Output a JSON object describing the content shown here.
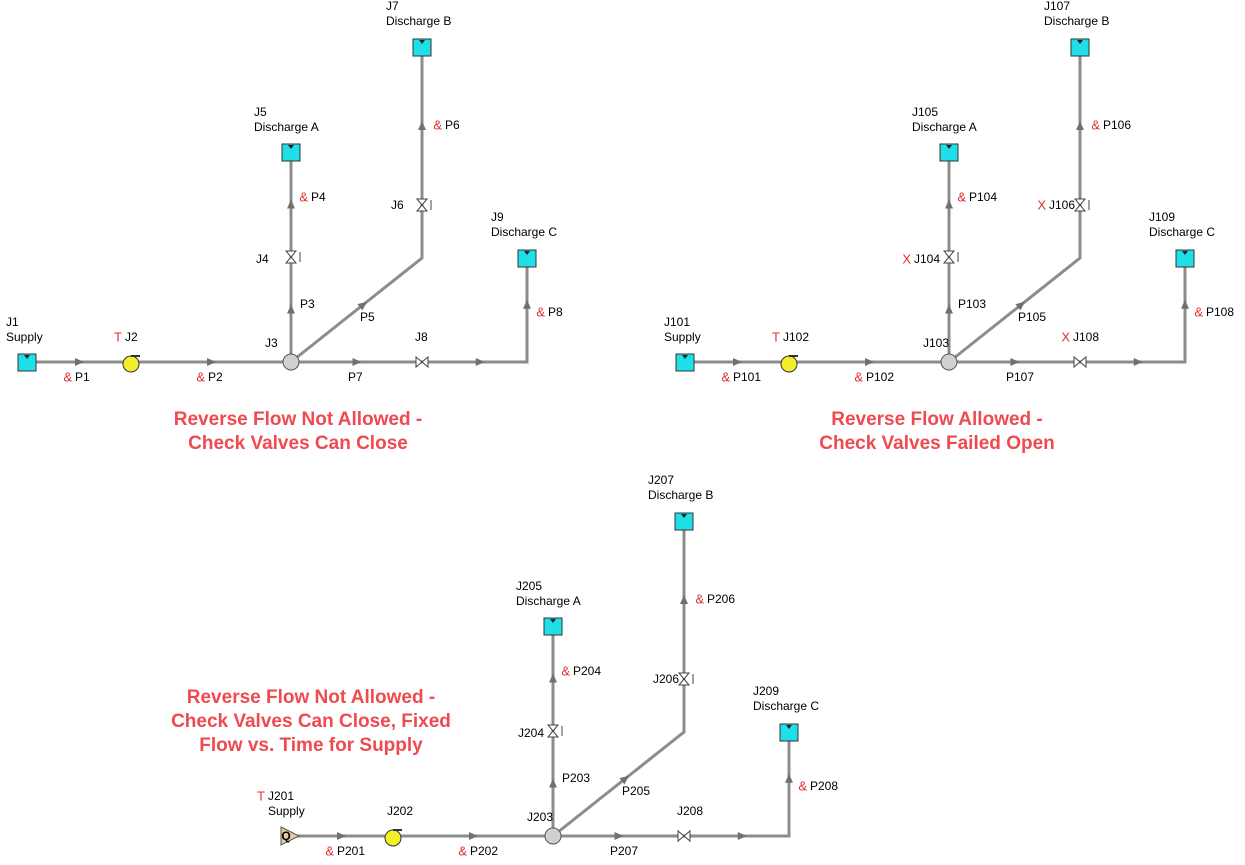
{
  "networks": [
    {
      "title": [
        "Reverse Flow Not Allowed -",
        "Check Valves Can Close"
      ],
      "nodes": [
        {
          "id": "J1",
          "name": "Supply"
        },
        {
          "id": "J2",
          "flag": "T"
        },
        {
          "id": "J3"
        },
        {
          "id": "J4"
        },
        {
          "id": "J5",
          "name": "Discharge A"
        },
        {
          "id": "J6"
        },
        {
          "id": "J7",
          "name": "Discharge B"
        },
        {
          "id": "J8"
        },
        {
          "id": "J9",
          "name": "Discharge C"
        }
      ],
      "pipes": [
        {
          "id": "P1",
          "flag": "&"
        },
        {
          "id": "P2",
          "flag": "&"
        },
        {
          "id": "P3"
        },
        {
          "id": "P4",
          "flag": "&"
        },
        {
          "id": "P5"
        },
        {
          "id": "P6",
          "flag": "&"
        },
        {
          "id": "P7"
        },
        {
          "id": "P8",
          "flag": "&"
        }
      ]
    },
    {
      "title": [
        "Reverse Flow Allowed -",
        "Check Valves Failed Open"
      ],
      "nodes": [
        {
          "id": "J101",
          "name": "Supply"
        },
        {
          "id": "J102",
          "flag": "T"
        },
        {
          "id": "J103"
        },
        {
          "id": "J104",
          "flag": "X"
        },
        {
          "id": "J105",
          "name": "Discharge A"
        },
        {
          "id": "J106",
          "flag": "X"
        },
        {
          "id": "J107",
          "name": "Discharge B"
        },
        {
          "id": "J108",
          "flag": "X"
        },
        {
          "id": "J109",
          "name": "Discharge C"
        }
      ],
      "pipes": [
        {
          "id": "P101",
          "flag": "&"
        },
        {
          "id": "P102",
          "flag": "&"
        },
        {
          "id": "P103"
        },
        {
          "id": "P104",
          "flag": "&"
        },
        {
          "id": "P105"
        },
        {
          "id": "P106",
          "flag": "&"
        },
        {
          "id": "P107"
        },
        {
          "id": "P108",
          "flag": "&"
        }
      ]
    },
    {
      "title": [
        "Reverse Flow Not Allowed -",
        "Check Valves Can Close, Fixed",
        "Flow vs. Time for Supply"
      ],
      "nodes": [
        {
          "id": "J201",
          "name": "Supply",
          "flag": "T",
          "symbol": "Q"
        },
        {
          "id": "J202"
        },
        {
          "id": "J203"
        },
        {
          "id": "J204"
        },
        {
          "id": "J205",
          "name": "Discharge A"
        },
        {
          "id": "J206"
        },
        {
          "id": "J207",
          "name": "Discharge B"
        },
        {
          "id": "J208"
        },
        {
          "id": "J209",
          "name": "Discharge C"
        }
      ],
      "pipes": [
        {
          "id": "P201",
          "flag": "&"
        },
        {
          "id": "P202",
          "flag": "&"
        },
        {
          "id": "P203"
        },
        {
          "id": "P204",
          "flag": "&"
        },
        {
          "id": "P205"
        },
        {
          "id": "P206",
          "flag": "&"
        },
        {
          "id": "P207"
        },
        {
          "id": "P208",
          "flag": "&"
        }
      ]
    }
  ]
}
